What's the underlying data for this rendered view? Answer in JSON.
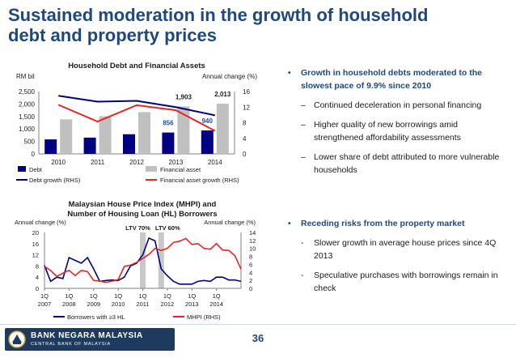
{
  "slide": {
    "title_line1": "Sustained moderation in the growth of household",
    "title_line2": "debt and property prices"
  },
  "bullets_top": {
    "main": "Growth in household debts moderated to the slowest pace of 9.9% since 2010",
    "subs": [
      "Continued deceleration in personal financing",
      "Higher quality of new borrowings amid strengthened affordability assessments",
      "Lower share of debt attributed to more vulnerable households"
    ],
    "bullet_glyph": "•",
    "dash_glyph": "–"
  },
  "bullets_bottom": {
    "main": "Receding risks from the property market",
    "subs": [
      "Slower growth in average house prices since 4Q 2013",
      "Speculative purchases with borrowings remain in check"
    ],
    "bullet_glyph": "•",
    "dash_glyph": "-"
  },
  "footer": {
    "bank_name": "BANK NEGARA MALAYSIA",
    "bank_sub": "CENTRAL BANK OF MALAYSIA",
    "page_number": "36"
  },
  "chart_data": [
    {
      "type": "bar",
      "title": "Household Debt and Financial Assets",
      "ylabel_left": "RM bil",
      "ylabel_right": "Annual change (%)",
      "categories": [
        "2010",
        "2011",
        "2012",
        "2013",
        "2014"
      ],
      "ylim_left": [
        0,
        2500
      ],
      "yticks_left": [
        0,
        500,
        1000,
        1500,
        2000,
        2500
      ],
      "ytick_labels_left": [
        "0",
        "500",
        "1,000",
        "1,500",
        "2,000",
        "2,500"
      ],
      "ylim_right": [
        0,
        16
      ],
      "yticks_right": [
        0,
        4,
        8,
        12,
        16
      ],
      "ytick_labels_right": [
        "0",
        "4",
        "8",
        "12",
        "16"
      ],
      "series": [
        {
          "name": "Debt",
          "kind": "bar",
          "axis": "left",
          "color": "#000080",
          "values": [
            581,
            653,
            788,
            856,
            940
          ]
        },
        {
          "name": "Financial asset",
          "kind": "bar",
          "axis": "left",
          "color": "#c0c0c0",
          "values": [
            1387,
            1510,
            1676,
            1903,
            2013
          ]
        },
        {
          "name": "Debt growth (RHS)",
          "kind": "line",
          "axis": "right",
          "color": "#000080",
          "values": [
            14.9,
            13.4,
            13.6,
            12.0,
            9.9
          ]
        },
        {
          "name": "Financial asset growth (RHS)",
          "kind": "line",
          "axis": "right",
          "color": "#e32626",
          "values": [
            12.6,
            8.3,
            12.5,
            11.2,
            5.9
          ]
        }
      ],
      "data_labels": [
        {
          "series": "Financial asset",
          "category": "2013",
          "text": "1,903",
          "color": "#1a1a1a"
        },
        {
          "series": "Financial asset",
          "category": "2014",
          "text": "2,013",
          "color": "#1a1a1a"
        },
        {
          "series": "Debt",
          "category": "2013",
          "text": "856",
          "color": "#1f4fa0"
        },
        {
          "series": "Debt",
          "category": "2014",
          "text": "940",
          "color": "#1f4fa0"
        }
      ],
      "legend": [
        "Debt",
        "Financial asset",
        "Debt growth (RHS)",
        "Financial asset growth (RHS)"
      ],
      "legend_position": "bottom"
    },
    {
      "type": "line",
      "title_line1": "Malaysian House Price Index (MHPI) and",
      "title_line2": "Number of Housing Loan (HL) Borrowers",
      "ylabel_left": "Annual change (%)",
      "ylabel_right": "Annual change (%)",
      "x_start_quarter": "1Q 2007",
      "x_tick_quarters": [
        1,
        5,
        9,
        13,
        17,
        21,
        25,
        29
      ],
      "x_tick_line1": [
        "1Q",
        "1Q",
        "1Q",
        "1Q",
        "1Q",
        "1Q",
        "1Q",
        "1Q"
      ],
      "x_tick_line2": [
        "2007",
        "2008",
        "2009",
        "2010",
        "2011",
        "2012",
        "2013",
        "2014"
      ],
      "ylim_left": [
        0,
        20
      ],
      "yticks_left": [
        0,
        4,
        8,
        12,
        16,
        20
      ],
      "ylim_right": [
        0,
        14
      ],
      "yticks_right": [
        0,
        2,
        4,
        6,
        8,
        10,
        12,
        14
      ],
      "annotations": [
        {
          "text": "LTV 70%",
          "quarter": 17
        },
        {
          "text": "LTV 60%",
          "quarter": 20
        }
      ],
      "series": [
        {
          "name": "Borrowers with ≥3 HL",
          "axis": "left",
          "color": "#000080",
          "values": [
            8.2,
            2.5,
            4,
            3.5,
            11,
            10,
            9,
            11,
            7,
            2.5,
            2.8,
            3,
            2.8,
            4,
            8,
            9,
            12,
            18,
            17,
            7,
            4.5,
            2.5,
            1.5,
            1.5,
            1.5,
            2.5,
            2.8,
            2.5,
            4,
            4,
            3,
            3,
            2.5
          ]
        },
        {
          "name": "MHPI (RHS)",
          "axis": "right",
          "color": "#e32626",
          "values": [
            5.5,
            4.5,
            3,
            3.8,
            4.5,
            3.2,
            4.5,
            4.2,
            2,
            1.8,
            1.5,
            1.8,
            2.2,
            5.5,
            5.8,
            6.5,
            7.5,
            8.5,
            10,
            9.5,
            10,
            11.5,
            11.8,
            12.5,
            11,
            11.2,
            10,
            9.8,
            11.2,
            9.6,
            9.5,
            8.2,
            4.8
          ]
        }
      ],
      "legend": [
        "Borrowers with ≥3 HL",
        "MHPI (RHS)"
      ],
      "legend_position": "bottom"
    }
  ]
}
